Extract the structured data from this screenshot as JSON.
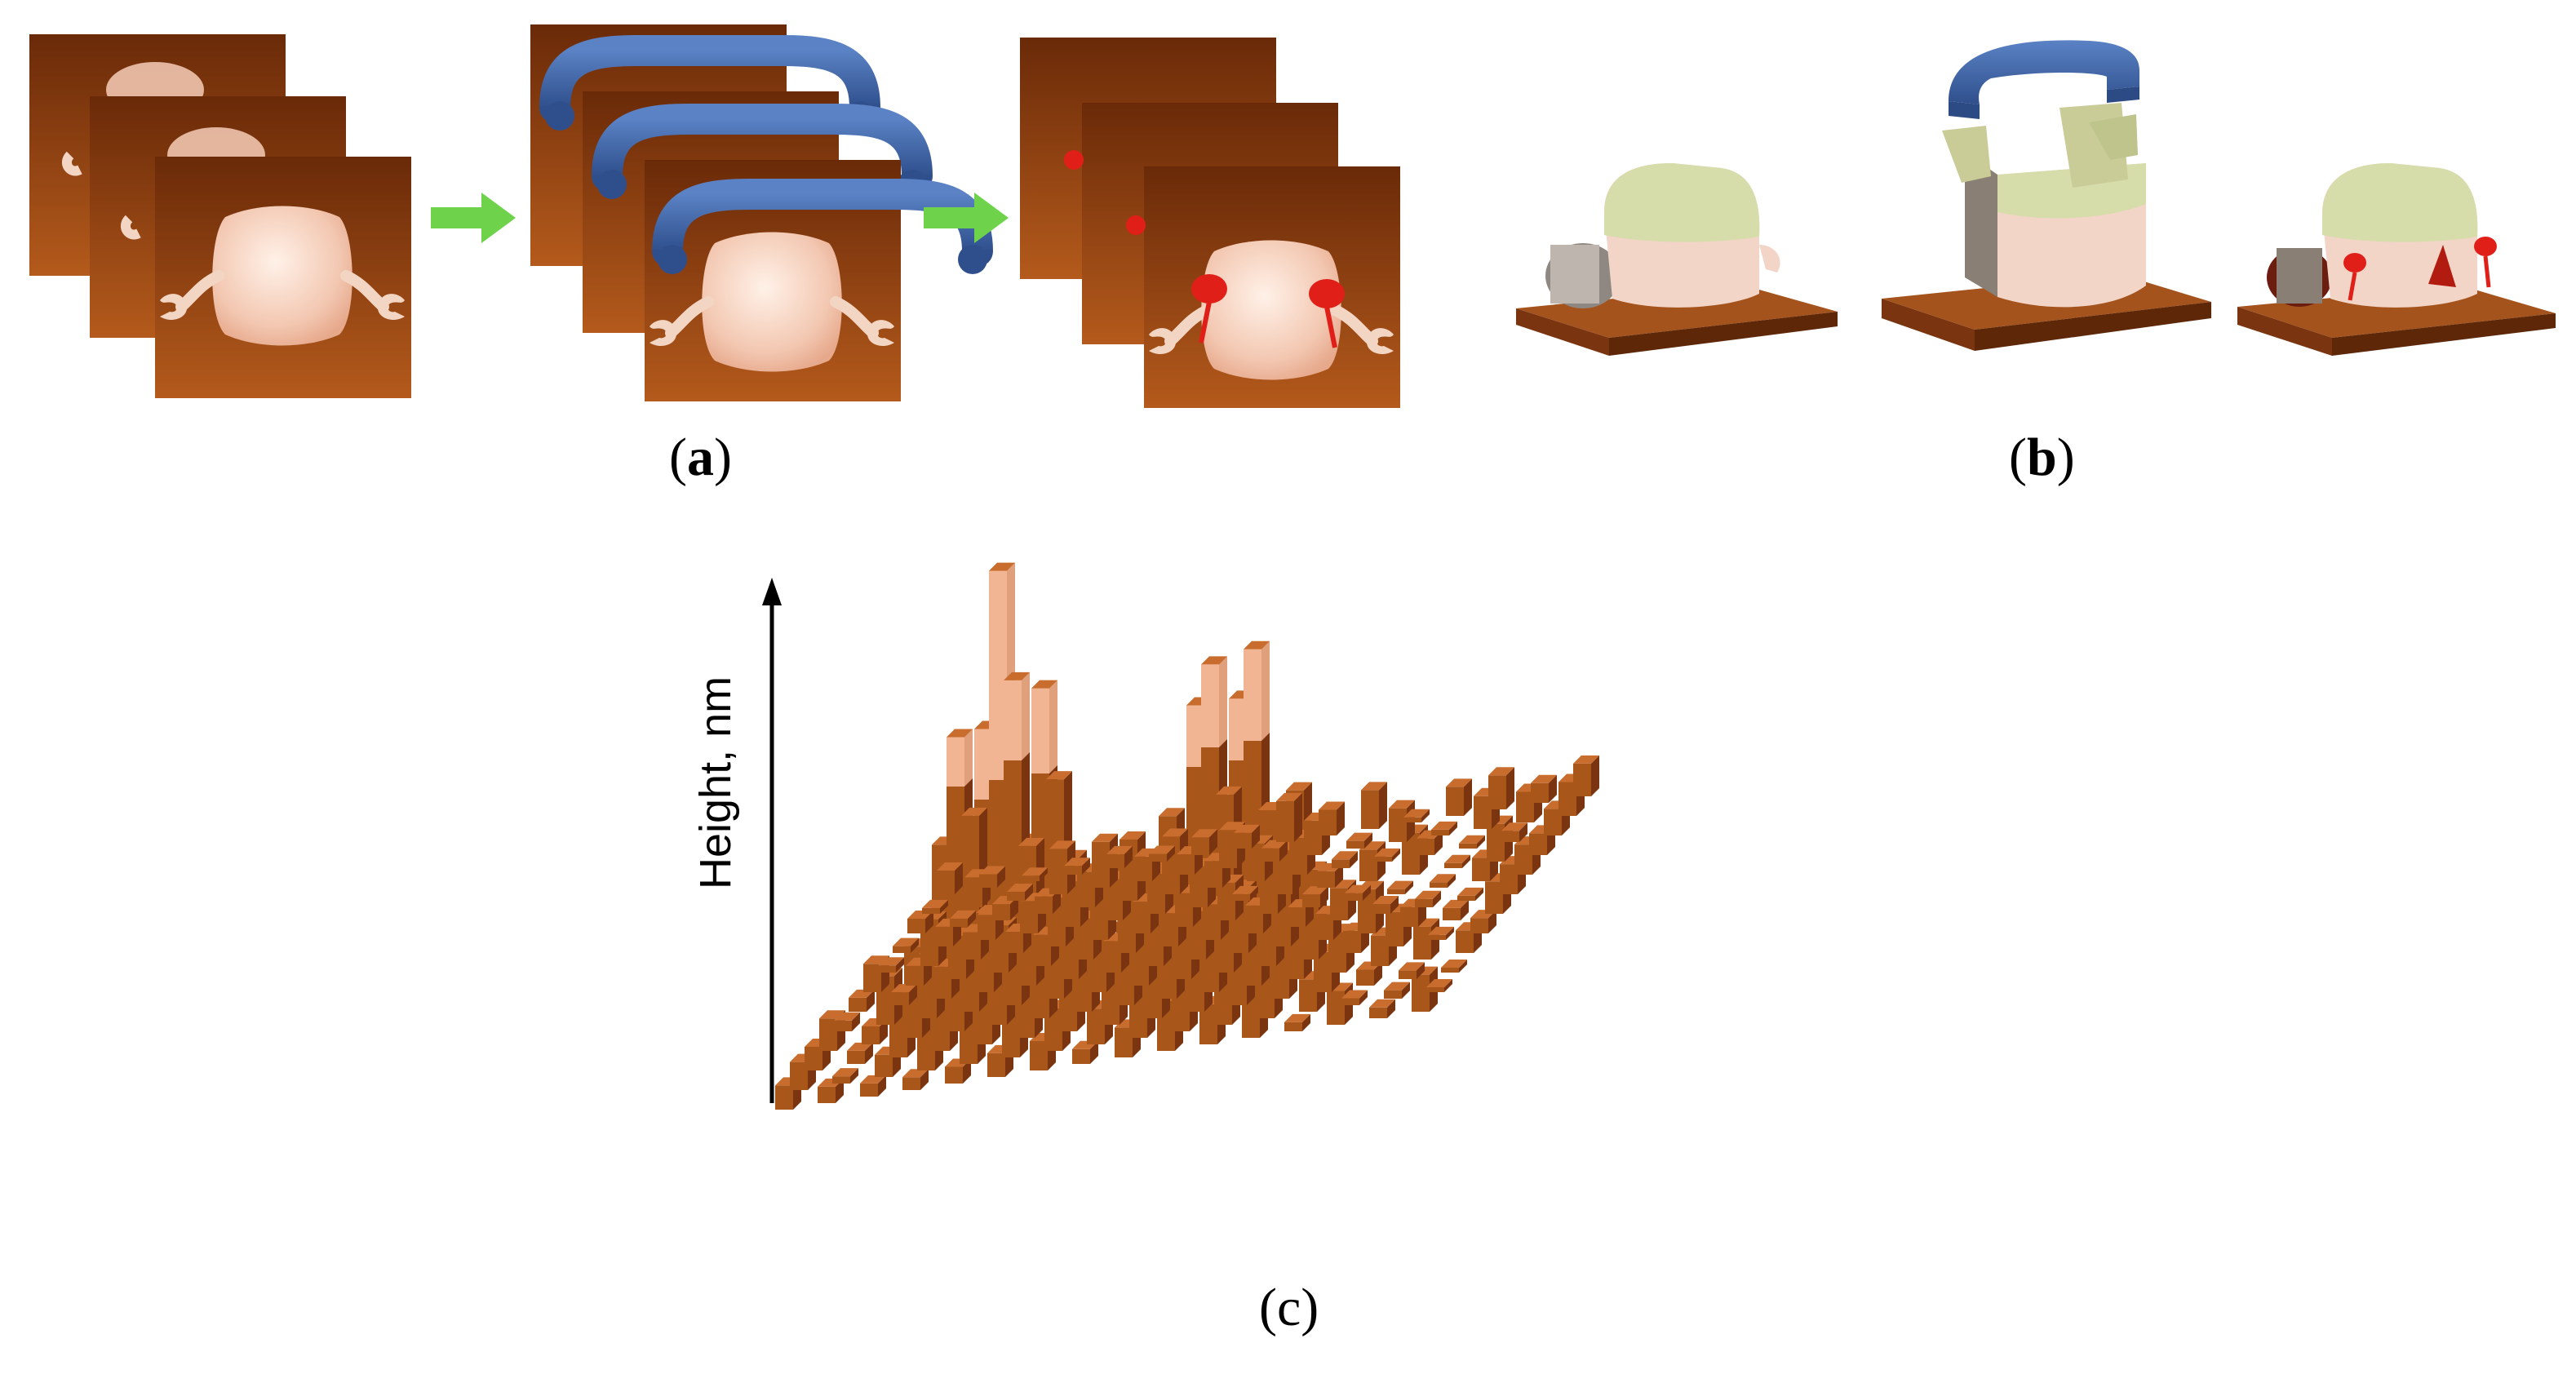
{
  "panels": {
    "a": {
      "open": "(",
      "letter": "a",
      "close": ")"
    },
    "b": {
      "open": "(",
      "letter": "b",
      "close": ")"
    },
    "c": {
      "open": "(",
      "letter": "c",
      "close": ")"
    }
  },
  "panel_c": {
    "ylabel": "Height, nm"
  },
  "colors": {
    "substrate": "#a5531c",
    "substrate_dark": "#7a3510",
    "protein": "#f0c9b4",
    "protein_cap": "#d6dcaa",
    "antibody": "#3f66a8",
    "label_dot": "#e02018",
    "arrow": "#6ed24a",
    "bar_front": "#a8561a",
    "bar_tall_top": "#f2b593"
  },
  "icons": [
    "green-arrow-icon",
    "antibody-icon",
    "protein-molecule-icon"
  ]
}
